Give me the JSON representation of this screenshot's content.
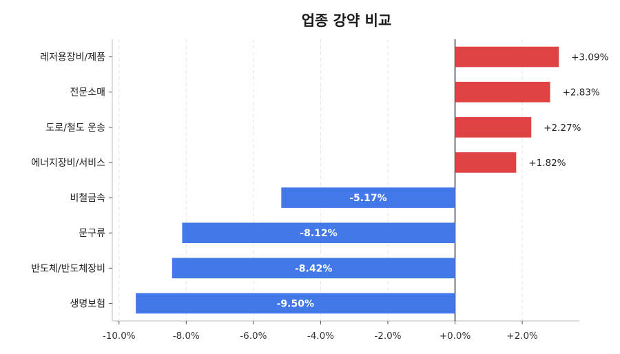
{
  "chart_data": {
    "type": "bar",
    "orientation": "horizontal",
    "title": "업종 강약 비교",
    "categories": [
      "레저용장비/제품",
      "전문소매",
      "도로/철도 운송",
      "에너지장비/서비스",
      "비철금속",
      "문구류",
      "반도체/반도체장비",
      "생명보험"
    ],
    "values": [
      3.09,
      2.83,
      2.27,
      1.82,
      -5.17,
      -8.12,
      -8.42,
      -9.5
    ],
    "value_labels": [
      "+3.09%",
      "+2.83%",
      "+2.27%",
      "+1.82%",
      "-5.17%",
      "-8.12%",
      "-8.42%",
      "-9.50%"
    ],
    "xlim": [
      -10.2,
      3.7
    ],
    "xticks": [
      -10,
      -8,
      -6,
      -4,
      -2,
      0,
      2
    ],
    "xtick_labels": [
      "-10.0%",
      "-8.0%",
      "-6.0%",
      "-4.0%",
      "-2.0%",
      "+0.0%",
      "+2.0%"
    ],
    "grid": "vertical-dashed",
    "colors": {
      "positive": "#e04343",
      "negative": "#4278e8",
      "zero_line": "#333a44",
      "grid": "#e3e3e3",
      "axis": "#bbbbbb"
    }
  }
}
